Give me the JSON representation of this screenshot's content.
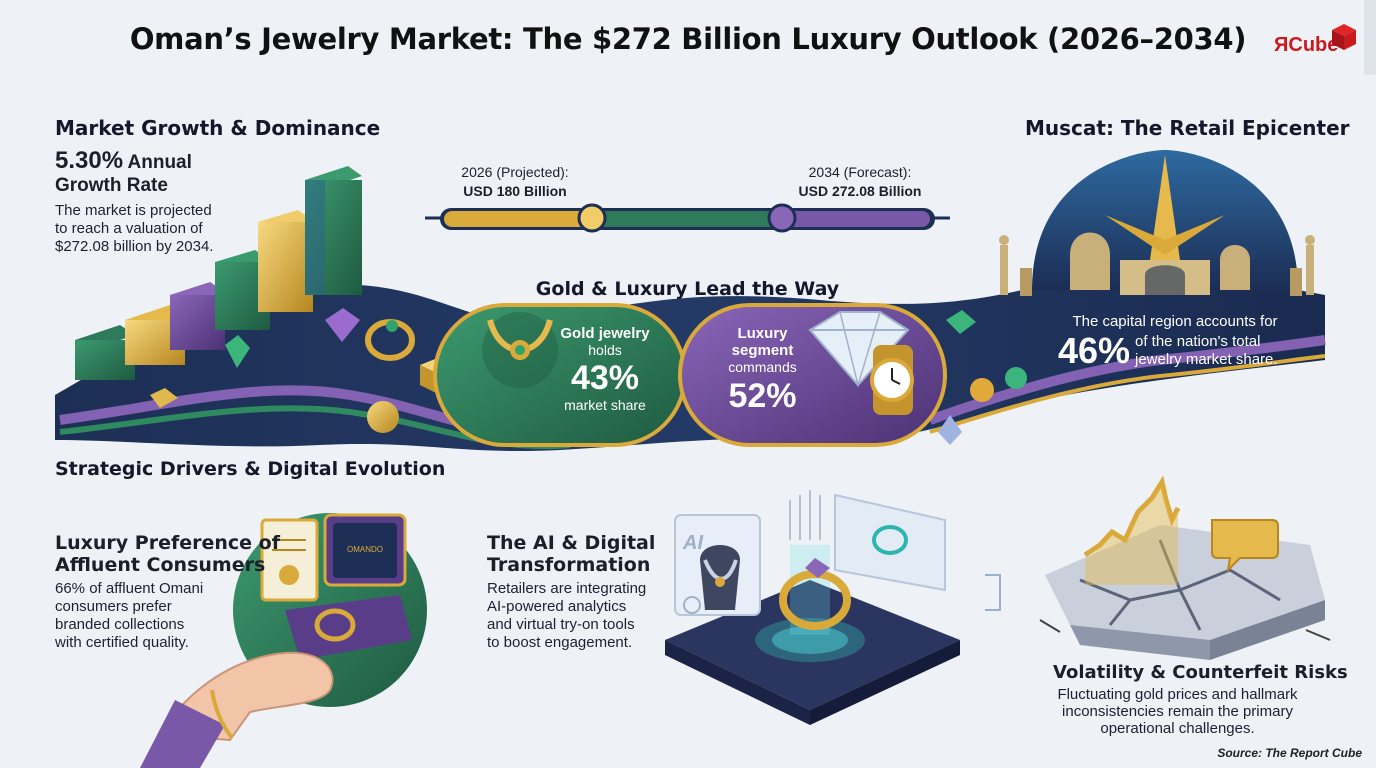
{
  "header": {
    "title": "Oman’s Jewelry Market: The $272 Billion Luxury Outlook (2026–2034)",
    "logo_text": "ЯCube"
  },
  "market_growth": {
    "heading": "Market Growth & Dominance",
    "rate_value": "5.30%",
    "rate_label_line1": "Annual",
    "rate_label_line2": "Growth Rate",
    "desc_line1": "The market is projected",
    "desc_line2": "to reach a valuation of",
    "desc_line3": "$272.08 billion by 2034."
  },
  "timeline": {
    "start_label": "2026 (Projected):",
    "start_value": "USD 180 Billion",
    "end_label": "2034 (Forecast):",
    "end_value": "USD 272.08 Billion"
  },
  "gold_luxury": {
    "heading": "Gold & Luxury Lead the Way",
    "gold_line1": "Gold jewelry",
    "gold_line2": "holds",
    "gold_value": "43%",
    "gold_line3": "market share",
    "lux_line1": "Luxury",
    "lux_line2": "segment",
    "lux_line3": "commands",
    "lux_value": "52%"
  },
  "muscat": {
    "heading": "Muscat: The Retail Epicenter",
    "line1": "The capital region accounts for",
    "value": "46%",
    "line2": "of the nation's total",
    "line3": "jewelry market share."
  },
  "drivers": {
    "heading": "Strategic Drivers & Digital Evolution",
    "luxury_title_line1": "Luxury Preference of",
    "luxury_title_line2": "Affluent Consumers",
    "luxury_desc_line1": "66% of affluent Omani",
    "luxury_desc_line2": "consumers prefer",
    "luxury_desc_line3": "branded collections",
    "luxury_desc_line4": "with certified quality.",
    "box_brand": "OMANDO",
    "ai_title_line1": "The AI & Digital",
    "ai_title_line2": "Transformation",
    "ai_desc_line1": "Retailers are integrating",
    "ai_desc_line2": "AI-powered analytics",
    "ai_desc_line3": "and virtual try-on tools",
    "ai_desc_line4": "to boost engagement.",
    "ai_badge": "AI",
    "risk_title": "Volatility & Counterfeit Risks",
    "risk_desc_line1": "Fluctuating gold prices and hallmark",
    "risk_desc_line2": "inconsistencies remain the primary",
    "risk_desc_line3": "operational challenges."
  },
  "footer": {
    "source": "Source: The Report Cube"
  },
  "colors": {
    "gold": "#d9a93a",
    "green": "#2f7a5a",
    "purple": "#6a4a95",
    "navy": "#1d2f55",
    "brand_red": "#c81a1f"
  }
}
